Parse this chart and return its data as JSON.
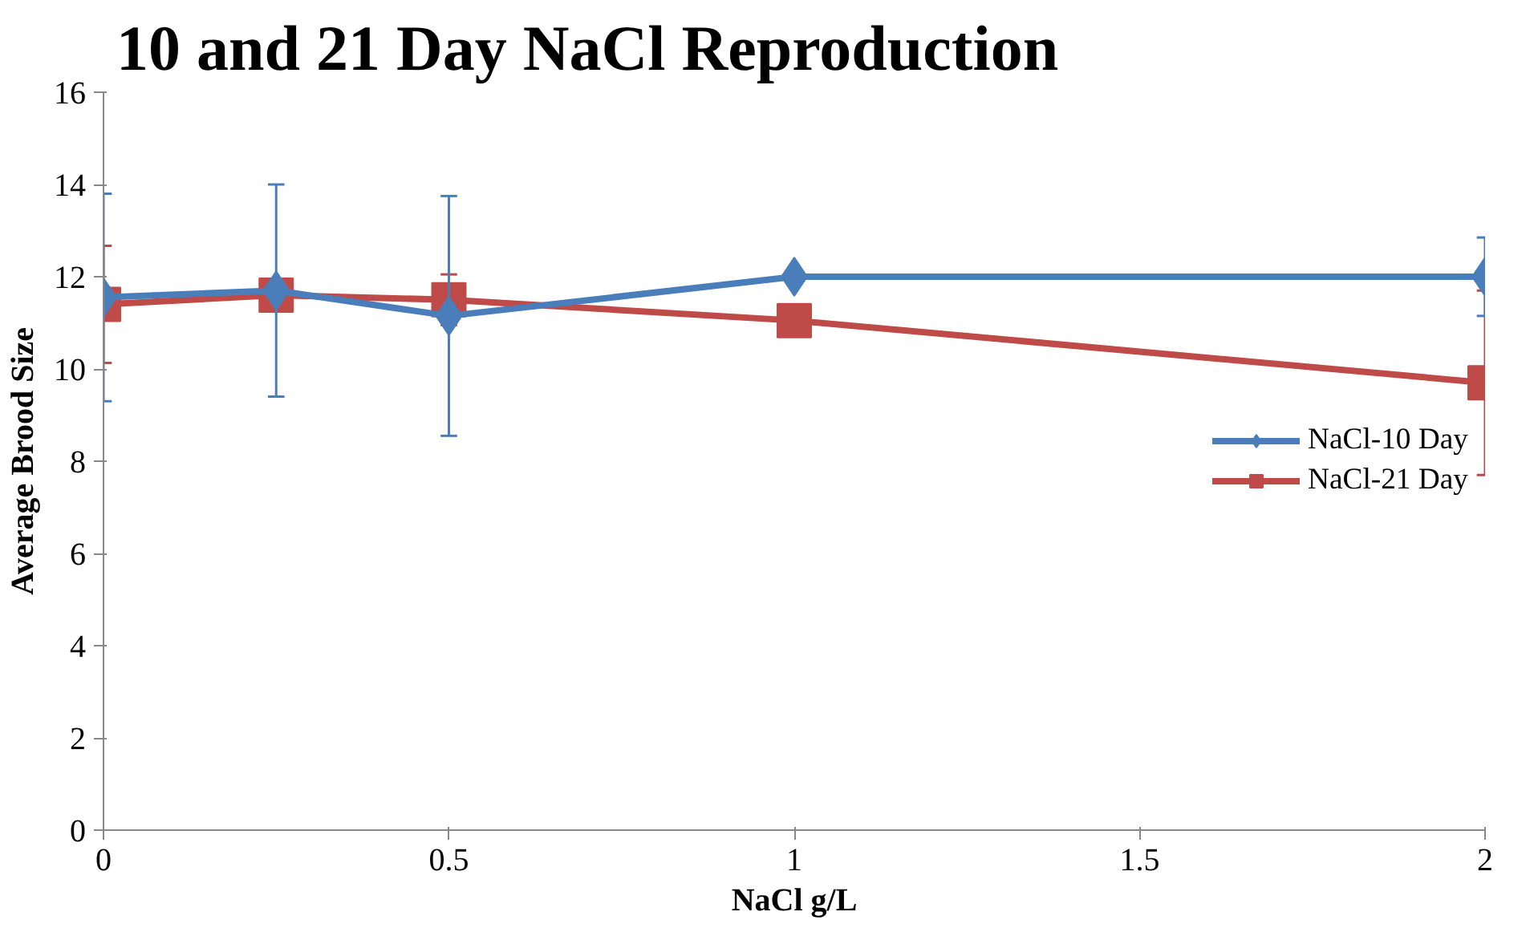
{
  "chart_data": {
    "type": "line",
    "title": "10 and 21 Day NaCl Reproduction",
    "xlabel": "NaCl g/L",
    "ylabel": "Average Brood Size",
    "x": [
      0,
      0.25,
      0.5,
      1,
      2
    ],
    "series": [
      {
        "name": "NaCl-10 Day",
        "color": "#4a7ebb",
        "marker": "diamond",
        "values": [
          11.55,
          11.7,
          11.15,
          12.0,
          12.0
        ],
        "errors": [
          2.25,
          2.3,
          2.6,
          null,
          0.85
        ]
      },
      {
        "name": "NaCl-21 Day",
        "color": "#be4b48",
        "marker": "square",
        "values": [
          11.4,
          11.6,
          11.5,
          11.05,
          9.7
        ],
        "errors": [
          1.27,
          null,
          0.55,
          null,
          2.0
        ]
      }
    ],
    "xlim": [
      0,
      2
    ],
    "xticks": [
      0,
      0.5,
      1,
      1.5,
      2
    ],
    "ylim": [
      0,
      16
    ],
    "yticks": [
      0,
      2,
      4,
      6,
      8,
      10,
      12,
      14,
      16
    ],
    "grid": false,
    "legend": "right",
    "line_style": "solid"
  }
}
